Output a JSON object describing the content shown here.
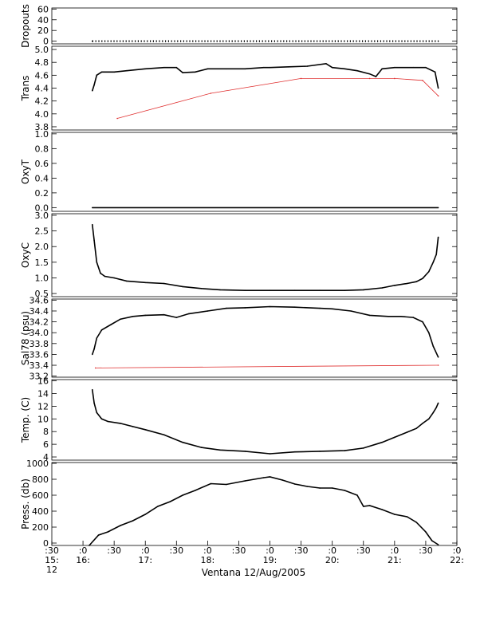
{
  "chart_data": {
    "type": "line",
    "title": "",
    "xlabel": "Ventana 12/Aug/2005",
    "x_ticks": [
      {
        "top": ":30",
        "mid": "15:",
        "low": "12"
      },
      {
        "top": ":0",
        "mid": "16:",
        "low": ""
      },
      {
        "top": ":30",
        "mid": "",
        "low": ""
      },
      {
        "top": ":0",
        "mid": "17:",
        "low": ""
      },
      {
        "top": ":30",
        "mid": "",
        "low": ""
      },
      {
        "top": ":0",
        "mid": "18:",
        "low": ""
      },
      {
        "top": ":30",
        "mid": "",
        "low": ""
      },
      {
        "top": ":0",
        "mid": "19:",
        "low": ""
      },
      {
        "top": ":30",
        "mid": "",
        "low": ""
      },
      {
        "top": ":0",
        "mid": "20:",
        "low": ""
      },
      {
        "top": ":30",
        "mid": "",
        "low": ""
      },
      {
        "top": ":0",
        "mid": "21:",
        "low": ""
      },
      {
        "top": ":30",
        "mid": "",
        "low": ""
      },
      {
        "top": ":0",
        "mid": "22:",
        "low": ""
      }
    ],
    "x_time_range_hours": [
      15.5,
      22.0
    ],
    "panels": [
      {
        "ylabel": "Dropouts",
        "ylim": [
          -5,
          62
        ],
        "yticks": [
          "0",
          "20",
          "40",
          "60"
        ],
        "ytick_values": [
          0,
          20,
          40,
          60
        ],
        "series": [
          {
            "name": "",
            "style": "dotted-line",
            "color": "#000000",
            "x": [
              16.15,
              21.7
            ],
            "y": [
              0,
              0
            ]
          }
        ]
      },
      {
        "ylabel": "Trans",
        "ylim": [
          3.75,
          5.05
        ],
        "yticks": [
          "3.8",
          "4.0",
          "4.2",
          "4.4",
          "4.6",
          "4.8",
          "5.0"
        ],
        "ytick_values": [
          3.8,
          4.0,
          4.2,
          4.4,
          4.6,
          4.8,
          5.0
        ],
        "series": [
          {
            "name": "",
            "color": "#000000",
            "x": [
              16.15,
              16.18,
              16.22,
              16.3,
              16.5,
              16.7,
              17.0,
              17.3,
              17.5,
              17.6,
              17.8,
              18.0,
              18.3,
              18.6,
              18.9,
              19.0,
              19.3,
              19.6,
              19.9,
              20.0,
              20.2,
              20.4,
              20.6,
              20.7,
              20.8,
              21.0,
              21.3,
              21.5,
              21.65,
              21.7
            ],
            "y": [
              4.36,
              4.45,
              4.6,
              4.65,
              4.65,
              4.67,
              4.7,
              4.72,
              4.72,
              4.64,
              4.65,
              4.7,
              4.7,
              4.7,
              4.72,
              4.72,
              4.73,
              4.74,
              4.78,
              4.72,
              4.7,
              4.67,
              4.62,
              4.58,
              4.7,
              4.72,
              4.72,
              4.72,
              4.65,
              4.4
            ]
          },
          {
            "name": "",
            "color": "#e03030",
            "x": [
              16.55,
              18.05,
              19.5,
              20.6,
              21.0,
              21.45,
              21.7
            ],
            "y": [
              3.93,
              4.32,
              4.55,
              4.55,
              4.55,
              4.52,
              4.28
            ]
          }
        ]
      },
      {
        "ylabel": "OxyT",
        "ylim": [
          -0.05,
          1.02
        ],
        "yticks": [
          "0.0",
          "0.2",
          "0.4",
          "0.6",
          "0.8",
          "1.0"
        ],
        "ytick_values": [
          0,
          0.2,
          0.4,
          0.6,
          0.8,
          1.0
        ],
        "series": [
          {
            "name": "",
            "color": "#000000",
            "x": [
              16.15,
              21.7
            ],
            "y": [
              0,
              0
            ]
          }
        ]
      },
      {
        "ylabel": "OxyC",
        "ylim": [
          0.4,
          3.05
        ],
        "yticks": [
          "0.5",
          "1.0",
          "1.5",
          "2.0",
          "2.5",
          "3.0"
        ],
        "ytick_values": [
          0.5,
          1.0,
          1.5,
          2.0,
          2.5,
          3.0
        ],
        "series": [
          {
            "name": "",
            "color": "#000000",
            "x": [
              16.15,
              16.18,
              16.22,
              16.28,
              16.35,
              16.5,
              16.7,
              17.0,
              17.3,
              17.6,
              17.9,
              18.2,
              18.6,
              19.0,
              19.4,
              19.8,
              20.2,
              20.5,
              20.8,
              21.0,
              21.2,
              21.35,
              21.45,
              21.55,
              21.62,
              21.67,
              21.7
            ],
            "y": [
              2.7,
              2.2,
              1.5,
              1.15,
              1.05,
              1.0,
              0.9,
              0.85,
              0.82,
              0.72,
              0.66,
              0.62,
              0.6,
              0.6,
              0.6,
              0.6,
              0.6,
              0.62,
              0.68,
              0.76,
              0.82,
              0.88,
              0.98,
              1.2,
              1.5,
              1.75,
              2.3
            ]
          }
        ]
      },
      {
        "ylabel": "Sal78 (psu)",
        "ylim": [
          33.18,
          34.62
        ],
        "yticks": [
          "33.2",
          "33.4",
          "33.6",
          "33.8",
          "34.0",
          "34.2",
          "34.4",
          "34.6"
        ],
        "ytick_values": [
          33.2,
          33.4,
          33.6,
          33.8,
          34.0,
          34.2,
          34.4,
          34.6
        ],
        "series": [
          {
            "name": "",
            "color": "#000000",
            "x": [
              16.15,
              16.18,
              16.22,
              16.3,
              16.45,
              16.6,
              16.8,
              17.0,
              17.3,
              17.5,
              17.7,
              18.0,
              18.3,
              18.6,
              19.0,
              19.4,
              19.8,
              20.0,
              20.3,
              20.6,
              20.9,
              21.1,
              21.3,
              21.45,
              21.55,
              21.62,
              21.7
            ],
            "y": [
              33.6,
              33.7,
              33.9,
              34.05,
              34.15,
              34.25,
              34.3,
              34.32,
              34.33,
              34.28,
              34.35,
              34.4,
              34.45,
              34.46,
              34.48,
              34.47,
              34.45,
              34.44,
              34.4,
              34.32,
              34.3,
              34.3,
              34.28,
              34.2,
              34.0,
              33.75,
              33.55
            ]
          },
          {
            "name": "",
            "color": "#e03030",
            "x": [
              16.2,
              21.7
            ],
            "y": [
              33.35,
              33.4
            ]
          }
        ]
      },
      {
        "ylabel": "Temp. (C)",
        "ylim": [
          3.5,
          16.2
        ],
        "yticks": [
          "4",
          "6",
          "8",
          "10",
          "12",
          "14",
          "16"
        ],
        "ytick_values": [
          4,
          6,
          8,
          10,
          12,
          14,
          16
        ],
        "series": [
          {
            "name": "",
            "color": "#000000",
            "x": [
              16.15,
              16.18,
              16.22,
              16.3,
              16.4,
              16.6,
              16.8,
              17.0,
              17.3,
              17.6,
              17.9,
              18.2,
              18.6,
              19.0,
              19.4,
              19.8,
              20.2,
              20.5,
              20.8,
              21.0,
              21.2,
              21.35,
              21.45,
              21.55,
              21.62,
              21.67,
              21.7
            ],
            "y": [
              14.6,
              12.5,
              11.0,
              10.0,
              9.6,
              9.3,
              8.8,
              8.3,
              7.5,
              6.3,
              5.5,
              5.1,
              4.9,
              4.5,
              4.8,
              4.9,
              5.0,
              5.4,
              6.3,
              7.1,
              7.9,
              8.5,
              9.3,
              10.0,
              11.0,
              11.8,
              12.5
            ]
          }
        ]
      },
      {
        "ylabel": "Press. (db)",
        "ylim": [
          -30,
          1010
        ],
        "yticks": [
          "0",
          "200",
          "400",
          "600",
          "800",
          "1000"
        ],
        "ytick_values": [
          0,
          200,
          400,
          600,
          800,
          1000
        ],
        "series": [
          {
            "name": "",
            "color": "#000000",
            "x": [
              16.1,
              16.25,
              16.4,
              16.6,
              16.8,
              17.0,
              17.2,
              17.4,
              17.6,
              17.8,
              18.05,
              18.3,
              18.6,
              18.9,
              19.0,
              19.2,
              19.4,
              19.6,
              19.8,
              20.0,
              20.2,
              20.4,
              20.5,
              20.6,
              20.8,
              21.0,
              21.2,
              21.35,
              21.5,
              21.6,
              21.7
            ],
            "y": [
              -30,
              100,
              140,
              220,
              280,
              360,
              460,
              520,
              600,
              660,
              745,
              735,
              780,
              820,
              830,
              790,
              740,
              710,
              690,
              690,
              660,
              600,
              460,
              470,
              420,
              360,
              330,
              260,
              140,
              30,
              -20
            ]
          }
        ]
      }
    ],
    "grid": false,
    "legend": "none"
  }
}
